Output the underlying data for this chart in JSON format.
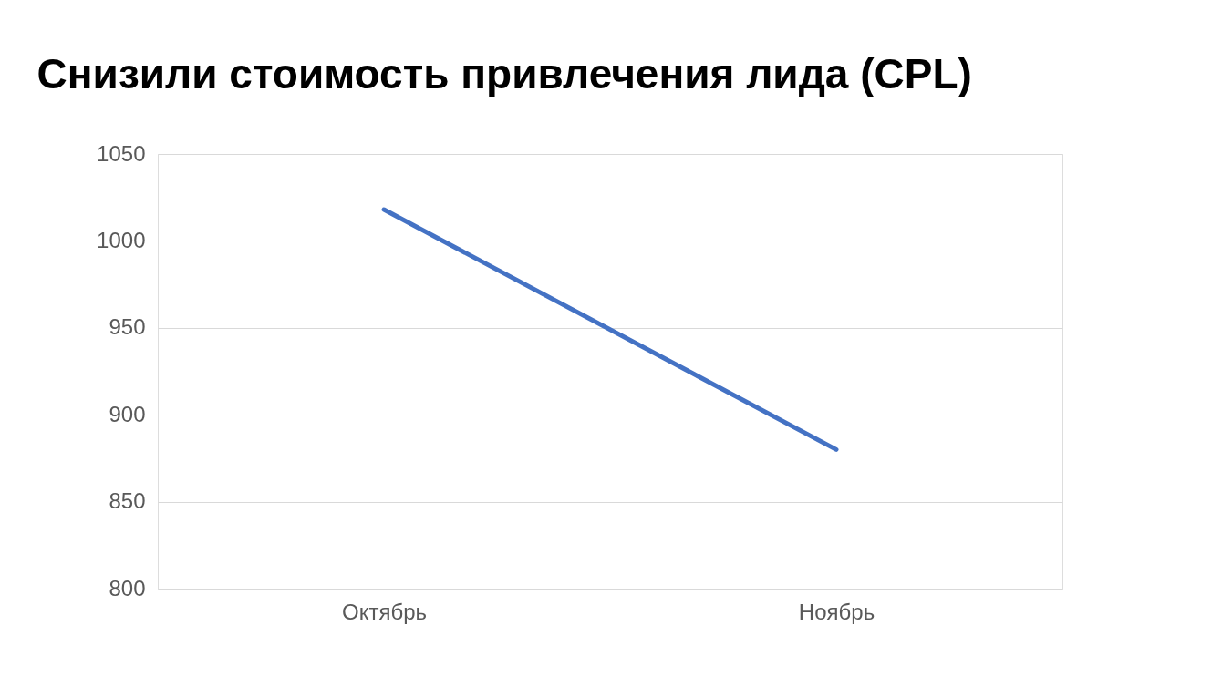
{
  "chart_data": {
    "type": "line",
    "title": "Снизили стоимость привлечения лида (CPL)",
    "categories": [
      "Октябрь",
      "Ноябрь"
    ],
    "series": [
      {
        "color": "#4472c4",
        "values": [
          1018,
          880
        ]
      }
    ],
    "ylim": [
      800,
      1050
    ],
    "yticks": [
      800,
      850,
      900,
      950,
      1000,
      1050
    ],
    "grid": "y",
    "marker": "none",
    "line_style": "solid"
  }
}
